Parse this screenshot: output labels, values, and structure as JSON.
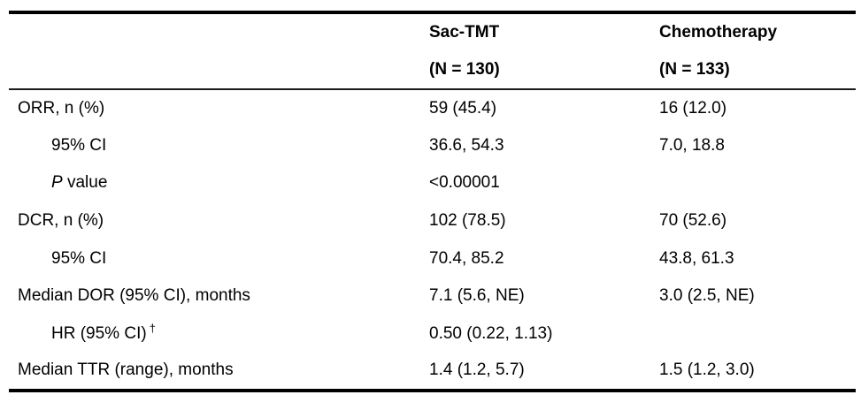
{
  "page": {
    "background_color": "#ffffff",
    "text_color": "#000000"
  },
  "table": {
    "header": {
      "columns": [
        {
          "name": "Sac-TMT",
          "n": "(N = 130)"
        },
        {
          "name": "Chemotherapy",
          "n": "(N = 133)"
        }
      ]
    },
    "rows": [
      {
        "label": "ORR, n (%)",
        "indent": false,
        "values": [
          "59 (45.4)",
          "16 (12.0)"
        ]
      },
      {
        "label": "95% CI",
        "indent": true,
        "values": [
          "36.6, 54.3",
          "7.0, 18.8"
        ]
      },
      {
        "label_parts": [
          {
            "text": "P",
            "italic": true
          },
          {
            "text": " value"
          }
        ],
        "indent": true,
        "values": [
          "<0.00001",
          ""
        ]
      },
      {
        "label": "DCR, n (%)",
        "indent": false,
        "values": [
          "102 (78.5)",
          "70 (52.6)"
        ]
      },
      {
        "label": "95% CI",
        "indent": true,
        "values": [
          "70.4, 85.2",
          "43.8, 61.3"
        ]
      },
      {
        "label": "Median DOR (95% CI), months",
        "indent": false,
        "values": [
          "7.1 (5.6, NE)",
          "3.0 (2.5, NE)"
        ]
      },
      {
        "label_parts": [
          {
            "text": "HR (95% CI)"
          },
          {
            "text": "†",
            "sup": true
          }
        ],
        "indent": true,
        "values": [
          "0.50 (0.22, 1.13)",
          ""
        ]
      },
      {
        "label": "Median TTR (range), months",
        "indent": false,
        "values": [
          "1.4 (1.2, 5.7)",
          "1.5 (1.2, 3.0)"
        ]
      }
    ],
    "borders": {
      "top_color": "#000000",
      "header_rule_color": "#1a1a1a",
      "bottom_color": "#000000"
    }
  }
}
